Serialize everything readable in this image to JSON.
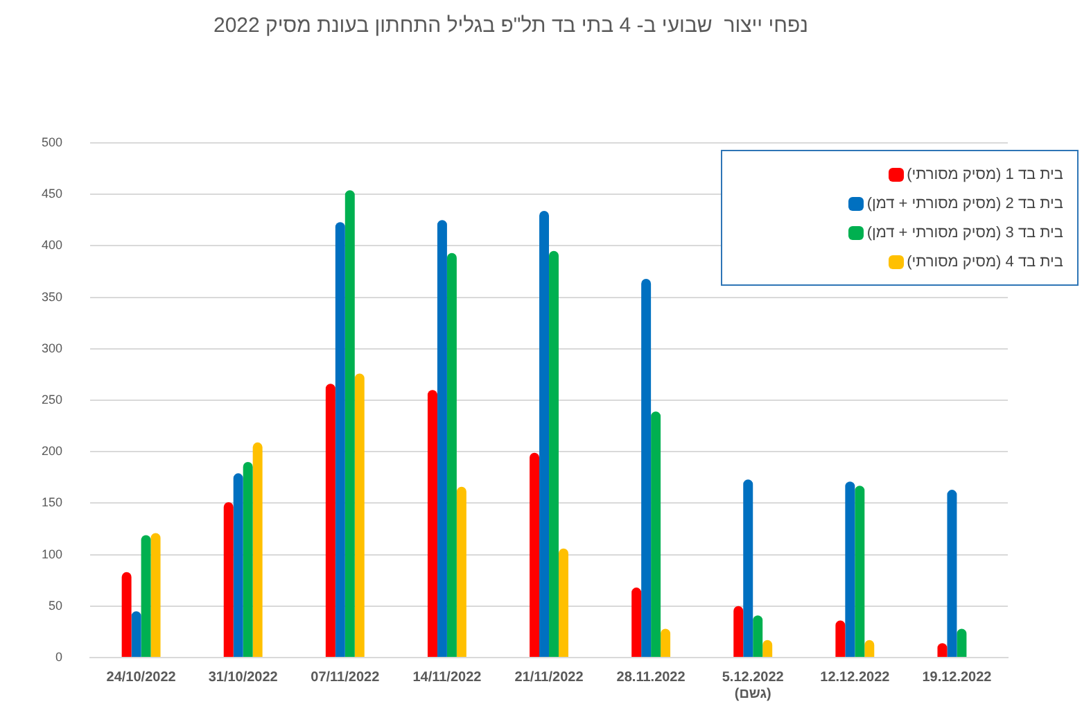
{
  "chart_data": {
    "type": "bar",
    "title": "נפחי ייצור  שבועי ב- 4 בתי בד תל\"פ בגליל התחתון בעונת מסיק 2022",
    "categories": [
      "24/10/2022",
      "31/10/2022",
      "07/11/2022",
      "14/11/2022",
      "21/11/2022",
      "28.11.2022",
      "5.12.2022\n(גשם)",
      "12.12.2022",
      "19.12.2022"
    ],
    "series": [
      {
        "name": "בית בד 1 (מסיק מסורתי)",
        "color": "#ff0000",
        "values": [
          83,
          151,
          266,
          260,
          199,
          68,
          50,
          36,
          14
        ]
      },
      {
        "name": "בית בד 2 (מסיק מסורתי + דמן)",
        "color": "#0070c0",
        "values": [
          45,
          179,
          423,
          425,
          434,
          368,
          173,
          171,
          163
        ]
      },
      {
        "name": "בית בד 3 (מסיק מסורתי + דמן)",
        "color": "#00b050",
        "values": [
          119,
          190,
          454,
          393,
          395,
          239,
          41,
          167,
          28
        ]
      },
      {
        "name": "בית בד 4 (מסיק מסורתי)",
        "color": "#ffc000",
        "values": [
          121,
          209,
          276,
          166,
          106,
          28,
          17,
          17,
          null
        ]
      }
    ],
    "ylim": [
      0,
      500
    ],
    "yticks": [
      0,
      50,
      100,
      150,
      200,
      250,
      300,
      350,
      400,
      450,
      500
    ],
    "grid": "y",
    "legend": "top right"
  }
}
